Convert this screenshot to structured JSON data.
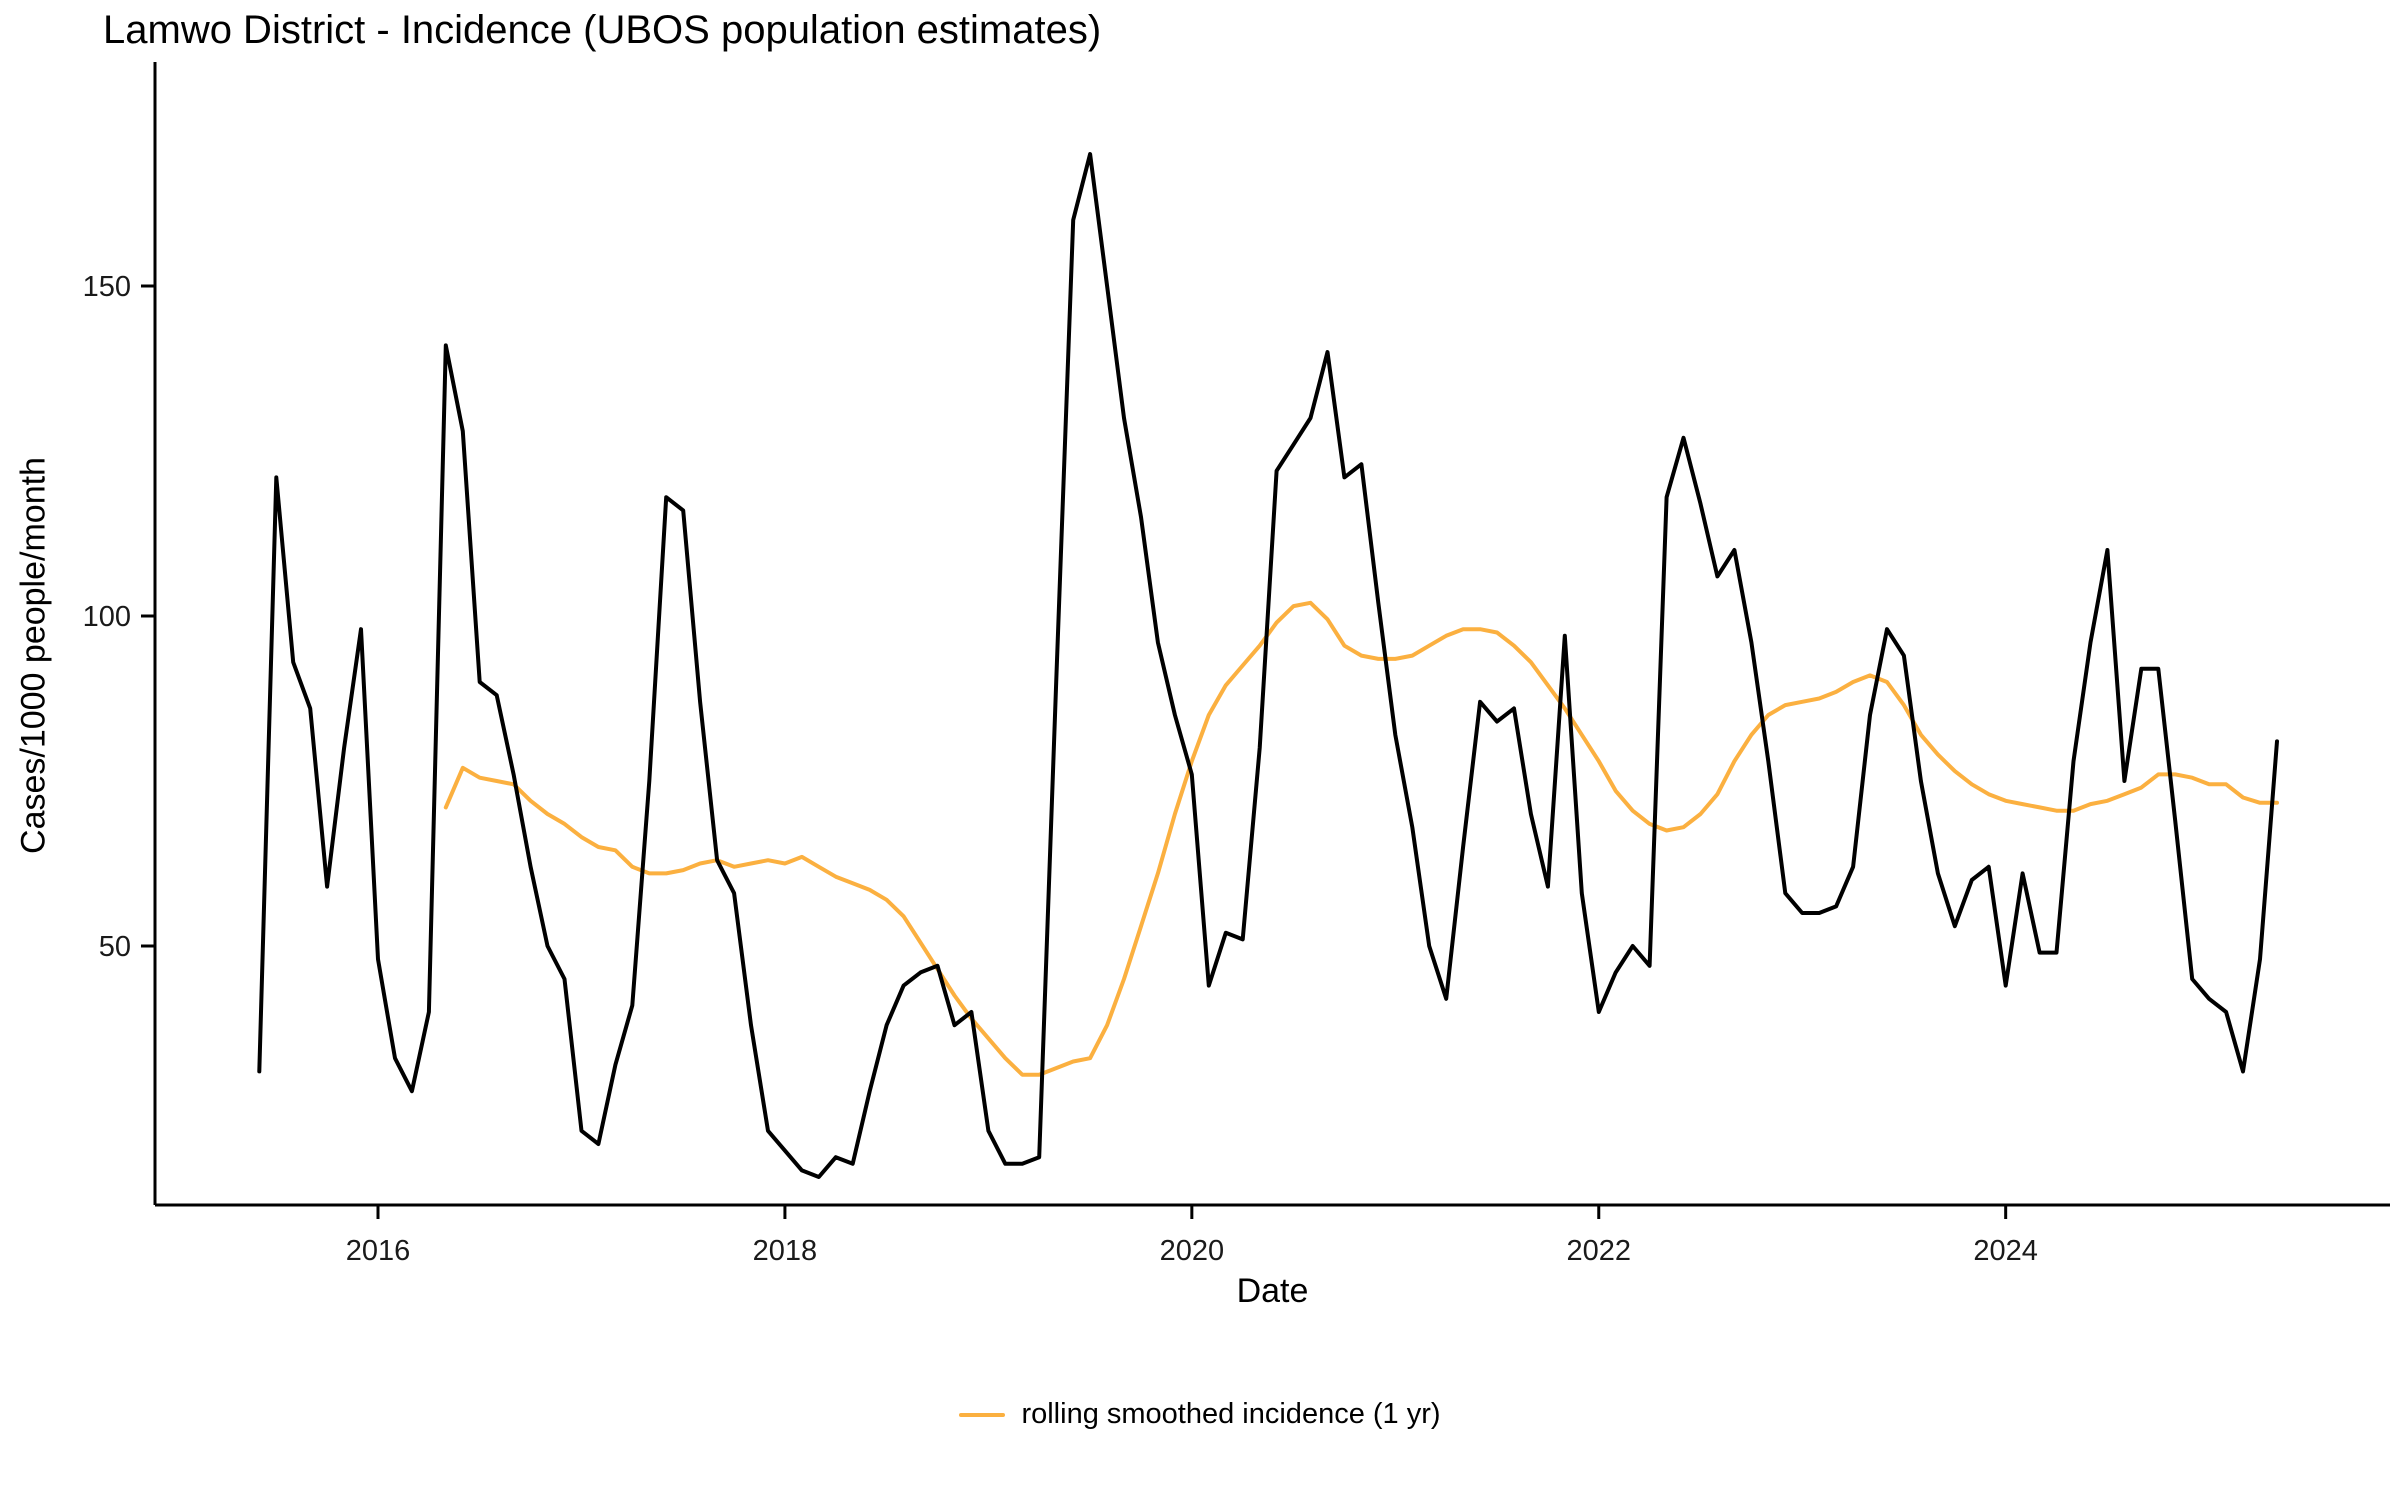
{
  "title": "Lamwo District - Incidence (UBOS population estimates)",
  "x_axis": {
    "label": "Date",
    "ticks": [
      {
        "label": "2016",
        "m": 0
      },
      {
        "label": "2018",
        "m": 24
      },
      {
        "label": "2020",
        "m": 48
      },
      {
        "label": "2022",
        "m": 72
      },
      {
        "label": "2024",
        "m": 96
      }
    ]
  },
  "y_axis": {
    "label": "Cases/1000 people/month",
    "ticks": [
      50,
      100,
      150
    ]
  },
  "legend": {
    "items": [
      {
        "label": "rolling smoothed incidence (1 yr)",
        "color": "#FBB040"
      }
    ]
  },
  "colors": {
    "incidence": "#000000",
    "smoothed": "#FBB040",
    "axis": "#000000",
    "tick_text": "#1a1a1a"
  },
  "chart_data": {
    "type": "line",
    "title": "Lamwo District - Incidence (UBOS population estimates)",
    "xlabel": "Date",
    "ylabel": "Cases/1000 people/month",
    "x_tick_years": [
      2016,
      2018,
      2020,
      2022,
      2024
    ],
    "y_ticks": [
      50,
      100,
      150
    ],
    "y_range_shown": [
      11,
      180
    ],
    "grid": false,
    "legend_position": "bottom-center",
    "series": [
      {
        "name": "monthly incidence",
        "color": "#000000",
        "start": "2015-06",
        "frequency": "monthly",
        "values": [
          31,
          121,
          93,
          86,
          59,
          80,
          98,
          48,
          33,
          28,
          40,
          141,
          128,
          90,
          88,
          76,
          62,
          50,
          45,
          22,
          20,
          32,
          41,
          75,
          118,
          116,
          87,
          63,
          58,
          38,
          22,
          19,
          16,
          15,
          18,
          17,
          28,
          38,
          44,
          46,
          47,
          38,
          40,
          22,
          17,
          17,
          18,
          90,
          160,
          170,
          150,
          130,
          115,
          96,
          85,
          76,
          44,
          52,
          51,
          80,
          122,
          126,
          130,
          140,
          121,
          123,
          102,
          82,
          68,
          50,
          42,
          65,
          87,
          84,
          86,
          70,
          59,
          97,
          58,
          40,
          46,
          50,
          47,
          118,
          127,
          117,
          106,
          110,
          96,
          78,
          58,
          55,
          55,
          56,
          62,
          85,
          98,
          94,
          75,
          61,
          53,
          60,
          62,
          44,
          61,
          49,
          49,
          78,
          96,
          110,
          75,
          92,
          92,
          69,
          45,
          42,
          40,
          31,
          48,
          81
        ]
      },
      {
        "name": "rolling smoothed incidence (1 yr)",
        "color": "#FBB040",
        "start": "2016-05",
        "frequency": "monthly",
        "values": [
          71,
          77,
          75.5,
          75,
          74.5,
          72,
          70,
          68.5,
          66.5,
          65,
          64.5,
          62,
          61,
          61,
          61.5,
          62.5,
          63,
          62,
          62.5,
          63,
          62.5,
          63.5,
          62,
          60.5,
          59.5,
          58.5,
          57,
          54.5,
          50.5,
          46.5,
          42.5,
          39,
          36,
          33,
          30.5,
          30.5,
          31.5,
          32.5,
          33,
          38,
          45,
          53,
          61,
          70,
          78,
          85,
          89.5,
          92.5,
          95.5,
          99,
          101.5,
          102,
          99.5,
          95.5,
          94,
          93.5,
          93.5,
          94,
          95.5,
          97,
          98,
          98,
          97.5,
          95.5,
          93,
          89.5,
          86,
          82,
          78,
          73.5,
          70.5,
          68.5,
          67.5,
          68,
          70,
          73,
          78,
          82,
          85,
          86.5,
          87,
          87.5,
          88.5,
          90,
          91,
          90,
          86.5,
          82,
          79,
          76.5,
          74.5,
          73,
          72,
          71.5,
          71,
          70.5,
          70.5,
          71.5,
          72,
          73,
          74,
          76,
          76,
          75.5,
          74.5,
          74.5,
          72.5,
          71.7,
          71.7
        ]
      }
    ]
  }
}
